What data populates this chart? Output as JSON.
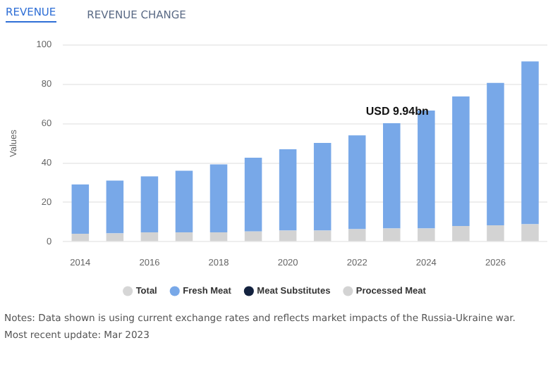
{
  "chart_data": {
    "type": "bar",
    "stacked": true,
    "ylabel": "Values",
    "categories": [
      "2014",
      null,
      "2016",
      null,
      "2018",
      null,
      "2020",
      null,
      "2022",
      null,
      "2024",
      null,
      "2026",
      null
    ],
    "series": [
      {
        "name": "Total",
        "color": "#d6d6d6",
        "values": [
          null,
          null,
          null,
          null,
          null,
          null,
          null,
          null,
          null,
          null,
          null,
          null,
          null,
          null
        ]
      },
      {
        "name": "Processed Meat",
        "color": "#d3d3d3",
        "values": [
          4.1,
          4.3,
          4.8,
          4.8,
          4.8,
          5.2,
          5.7,
          5.7,
          6.4,
          6.8,
          6.8,
          8.0,
          8.4,
          8.9
        ]
      },
      {
        "name": "Meat Substitutes",
        "color": "#13223f",
        "values": [
          0,
          0,
          0,
          0,
          0,
          0,
          0,
          0,
          0,
          0,
          0,
          0,
          0,
          0
        ]
      },
      {
        "name": "Fresh Meat",
        "color": "#78a8e8",
        "values": [
          25.0,
          26.8,
          28.4,
          31.3,
          34.5,
          37.5,
          41.3,
          44.5,
          47.7,
          53.4,
          59.9,
          65.8,
          72.3,
          82.7
        ]
      }
    ],
    "ylim": [
      0,
      100
    ],
    "yticks": [
      0,
      20,
      40,
      60,
      80,
      100
    ],
    "grid": "y",
    "legend": "bottom",
    "annotations": [
      "REVENUE",
      "REVENUE CHANGE",
      "USD 9.94bn",
      "Notes: Data shown is using current exchange rates and reflects market impacts of the Russia-Ukraine war.",
      "Most recent update: Mar 2023"
    ]
  }
}
